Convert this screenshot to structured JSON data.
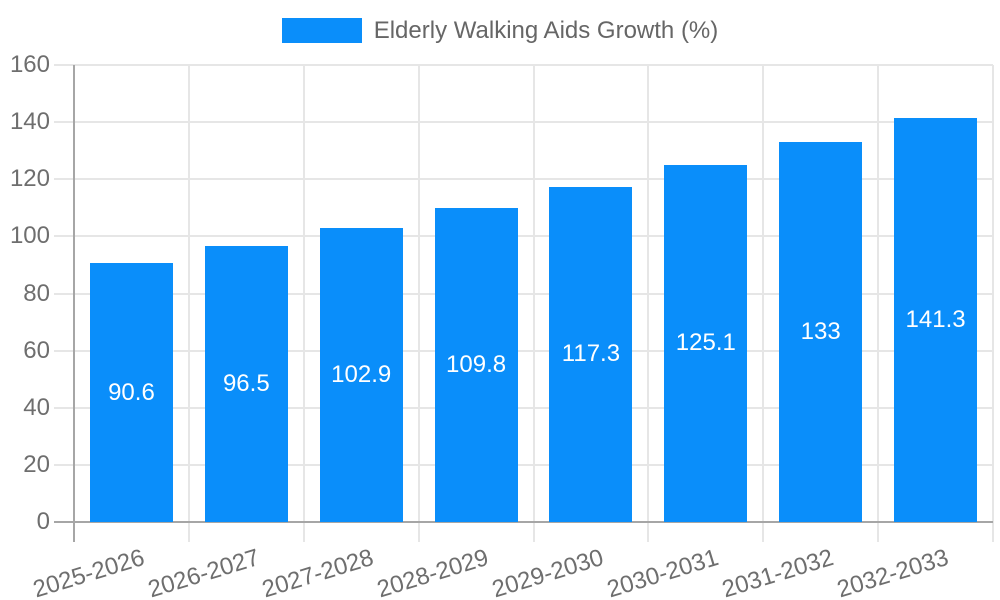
{
  "chart_data": {
    "type": "bar",
    "title": "Elderly Walking Aids Growth (%)",
    "categories": [
      "2025-2026",
      "2026-2027",
      "2027-2028",
      "2028-2029",
      "2029-2030",
      "2030-2031",
      "2031-2032",
      "2032-2033"
    ],
    "values": [
      90.6,
      96.5,
      102.9,
      109.8,
      117.3,
      125.1,
      133,
      141.3
    ],
    "value_labels": [
      "90.6",
      "96.5",
      "102.9",
      "109.8",
      "117.3",
      "125.1",
      "133",
      "141.3"
    ],
    "xlabel": "",
    "ylabel": "",
    "ylim": [
      0,
      160
    ],
    "yticks": [
      0,
      20,
      40,
      60,
      80,
      100,
      120,
      140,
      160
    ],
    "grid": true,
    "legend_position": "top",
    "x_tick_rotation_deg": -17
  },
  "colors": {
    "bar": "#0A8EFA",
    "grid": "#E6E6E6",
    "axis": "#A6A6A6",
    "tick_text": "#6E6E6E",
    "legend_text": "#666666",
    "value_label_text": "#FFFFFF",
    "background": "#FFFFFF"
  }
}
